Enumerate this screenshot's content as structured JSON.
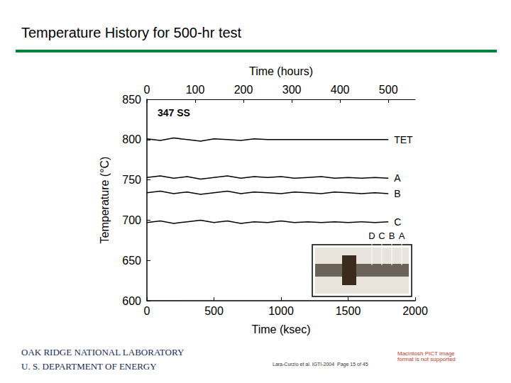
{
  "title": "Temperature History for 500-hr test",
  "chart_data": {
    "type": "line",
    "annotation": "347 SS",
    "x_label": "Time (ksec)",
    "x2_label": "Time (hours)",
    "y_label": "Temperature (°C)",
    "x": [
      0,
      100,
      200,
      300,
      400,
      500,
      600,
      700,
      800,
      900,
      1000,
      1100,
      1200,
      1300,
      1400,
      1500,
      1600,
      1700,
      1800
    ],
    "series": [
      {
        "name": "TET",
        "color": "#000000",
        "values": [
          801,
          799,
          802,
          800,
          798,
          801,
          800,
          799,
          801,
          800,
          800,
          800,
          800,
          800,
          800,
          800,
          800,
          800,
          800
        ]
      },
      {
        "name": "A",
        "color": "#000000",
        "values": [
          753,
          755,
          752,
          754,
          751,
          753,
          755,
          752,
          754,
          753,
          754,
          752,
          753,
          754,
          752,
          753,
          752,
          753,
          752
        ]
      },
      {
        "name": "B",
        "color": "#000000",
        "values": [
          734,
          736,
          733,
          735,
          732,
          734,
          736,
          733,
          735,
          734,
          733,
          735,
          734,
          733,
          735,
          734,
          733,
          734,
          733
        ]
      },
      {
        "name": "C",
        "color": "#000000",
        "values": [
          697,
          699,
          696,
          698,
          700,
          697,
          699,
          696,
          698,
          697,
          699,
          697,
          698,
          697,
          698,
          697,
          698,
          697,
          698
        ]
      }
    ],
    "xlim": [
      0,
      2000
    ],
    "xticks": [
      0,
      500,
      1000,
      1500,
      2000
    ],
    "x2lim": [
      0,
      555.6
    ],
    "x2ticks": [
      0,
      100,
      200,
      300,
      400,
      500
    ],
    "ylim": [
      600,
      850
    ],
    "yticks": [
      600,
      650,
      700,
      750,
      800,
      850
    ],
    "grid": false,
    "inset_labels": [
      "D",
      "C",
      "B",
      "A"
    ]
  },
  "footer": {
    "org": "OAK RIDGE NATIONAL LABORATORY",
    "agency": "U. S. DEPARTMENT OF ENERGY",
    "citation": "Lara-Curzio et al. IGTI-2004  Page 15 of 45",
    "placeholder": "Macintosh PICT image format is not supported"
  }
}
